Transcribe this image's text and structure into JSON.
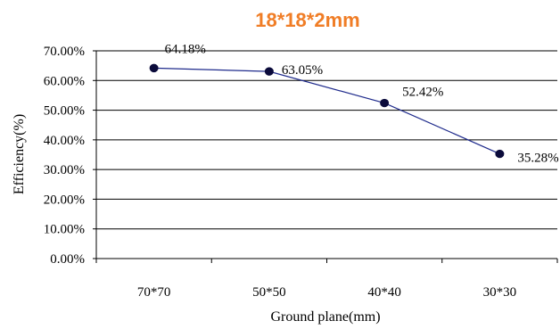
{
  "chart_data": {
    "type": "line",
    "title": "18*18*2mm",
    "xlabel": "Ground plane(mm)",
    "ylabel": "Efficiency(%)",
    "categories": [
      "70*70",
      "50*50",
      "40*40",
      "30*30"
    ],
    "series": [
      {
        "values": [
          64.18,
          63.05,
          52.42,
          35.28
        ],
        "data_labels": [
          "64.18%",
          "63.05%",
          "52.42%",
          "35.28%"
        ]
      }
    ],
    "ylim": [
      0,
      70
    ],
    "yticks": [
      0,
      10,
      20,
      30,
      40,
      50,
      60,
      70
    ],
    "ytick_labels": [
      "0.00%",
      "10.00%",
      "20.00%",
      "30.00%",
      "40.00%",
      "50.00%",
      "60.00%",
      "70.00%"
    ],
    "grid": true,
    "legend": "none",
    "colors": {
      "title": "#f07d26",
      "line": "#1f2b8c",
      "marker": "#0b0b3b",
      "grid": "#000000",
      "text": "#000000"
    }
  }
}
